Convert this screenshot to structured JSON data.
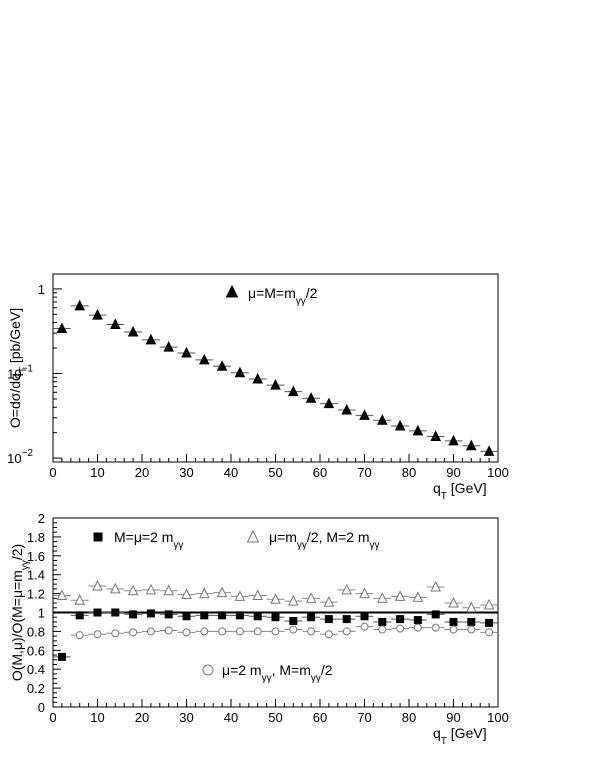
{
  "chart_data": [
    {
      "type": "scatter",
      "xlabel": "q_T [GeV]",
      "ylabel": "O=dσ/dq_T [pb/GeV]",
      "xlim": [
        0,
        100
      ],
      "ylim": [
        0.009,
        1.5
      ],
      "yscale": "log",
      "xticks": [
        0,
        10,
        20,
        30,
        40,
        50,
        60,
        70,
        80,
        90,
        100
      ],
      "yticks": [
        {
          "value": 1,
          "base": "1",
          "exp": ""
        },
        {
          "value": 0.1,
          "base": "10",
          "exp": "−1"
        },
        {
          "value": 0.01,
          "base": "10",
          "exp": "−2"
        }
      ],
      "legend_position": "top-center",
      "series": [
        {
          "name": "μ=M=m_γγ/2",
          "marker": "filled-triangle",
          "x": [
            2,
            6,
            10,
            14,
            18,
            22,
            26,
            30,
            34,
            38,
            42,
            46,
            50,
            54,
            58,
            62,
            66,
            70,
            74,
            78,
            82,
            86,
            90,
            94,
            98
          ],
          "y": [
            0.34,
            0.63,
            0.49,
            0.38,
            0.31,
            0.25,
            0.205,
            0.175,
            0.145,
            0.122,
            0.102,
            0.086,
            0.073,
            0.061,
            0.051,
            0.044,
            0.037,
            0.032,
            0.028,
            0.024,
            0.021,
            0.018,
            0.016,
            0.014,
            0.012
          ]
        }
      ]
    },
    {
      "type": "scatter",
      "xlabel": "q_T [GeV]",
      "ylabel": "O(M,μ)/O(M=μ=m_γγ/2)",
      "xlim": [
        0,
        100
      ],
      "ylim": [
        0,
        2
      ],
      "xticks": [
        0,
        10,
        20,
        30,
        40,
        50,
        60,
        70,
        80,
        90,
        100
      ],
      "yticks": [
        0,
        0.2,
        0.4,
        0.6,
        0.8,
        1,
        1.2,
        1.4,
        1.6,
        1.8,
        2
      ],
      "reference_line": 1,
      "series": [
        {
          "name": "M=μ=2 m_γγ",
          "marker": "filled-square",
          "x": [
            2,
            6,
            10,
            14,
            18,
            22,
            26,
            30,
            34,
            38,
            42,
            46,
            50,
            54,
            58,
            62,
            66,
            70,
            74,
            78,
            82,
            86,
            90,
            94,
            98
          ],
          "y": [
            0.53,
            0.97,
            1.0,
            1.0,
            0.98,
            0.99,
            0.98,
            0.96,
            0.97,
            0.97,
            0.97,
            0.96,
            0.95,
            0.91,
            0.95,
            0.93,
            0.93,
            0.96,
            0.9,
            0.93,
            0.92,
            0.98,
            0.9,
            0.9,
            0.89
          ]
        },
        {
          "name": "μ=m_γγ/2, M=2 m_γγ",
          "marker": "open-triangle",
          "x": [
            2,
            6,
            10,
            14,
            18,
            22,
            26,
            30,
            34,
            38,
            42,
            46,
            50,
            54,
            58,
            62,
            66,
            70,
            74,
            78,
            82,
            86,
            90,
            94,
            98
          ],
          "y": [
            1.18,
            1.13,
            1.28,
            1.25,
            1.23,
            1.24,
            1.23,
            1.19,
            1.2,
            1.21,
            1.17,
            1.18,
            1.14,
            1.12,
            1.15,
            1.11,
            1.24,
            1.2,
            1.15,
            1.17,
            1.16,
            1.27,
            1.1,
            1.05,
            1.08
          ]
        },
        {
          "name": "μ=2 m_γγ, M=m_γγ/2",
          "marker": "open-circle",
          "x": [
            2,
            6,
            10,
            14,
            18,
            22,
            26,
            30,
            34,
            38,
            42,
            46,
            50,
            54,
            58,
            62,
            66,
            70,
            74,
            78,
            82,
            86,
            90,
            94,
            98
          ],
          "y": [
            null,
            0.76,
            0.77,
            0.78,
            0.79,
            0.8,
            0.81,
            0.79,
            0.8,
            0.8,
            0.8,
            0.8,
            0.8,
            0.82,
            0.8,
            0.77,
            0.8,
            0.85,
            0.82,
            0.83,
            0.84,
            0.84,
            0.82,
            0.82,
            0.79
          ]
        }
      ]
    }
  ]
}
